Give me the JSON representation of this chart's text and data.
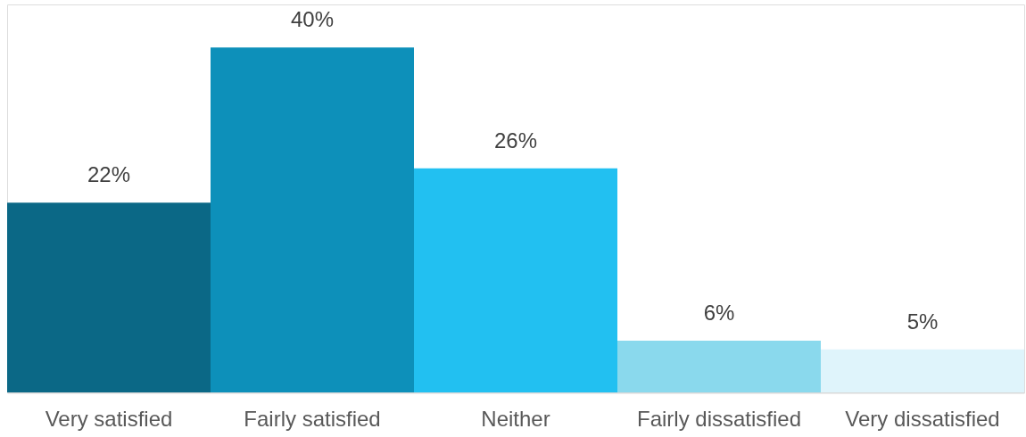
{
  "chart_data": {
    "type": "bar",
    "categories": [
      "Very satisfied",
      "Fairly satisfied",
      "Neither",
      "Fairly dissatisfied",
      "Very dissatisfied"
    ],
    "values": [
      22,
      40,
      26,
      6,
      5
    ],
    "colors": [
      "#0b6886",
      "#0d90ba",
      "#22c0f1",
      "#8ad9ed",
      "#dff4fb"
    ],
    "value_labels": [
      "22%",
      "40%",
      "26%",
      "6%",
      "5%"
    ],
    "ylim": [
      0,
      45
    ],
    "tick_labels": "x",
    "grid": false
  }
}
